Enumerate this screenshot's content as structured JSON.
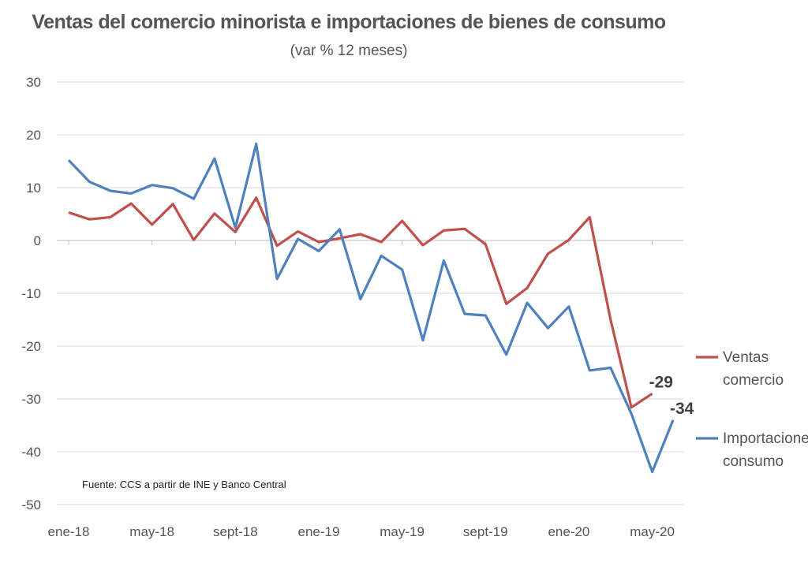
{
  "chart_data": {
    "type": "line",
    "title": "Ventas del comercio minorista e importaciones de bienes de consumo",
    "subtitle": "(var % 12 meses)",
    "xlabel": "",
    "ylabel": "",
    "ylim": [
      -50,
      30
    ],
    "yticks": [
      30,
      20,
      10,
      0,
      -10,
      -20,
      -30,
      -40,
      -50
    ],
    "x_tick_labels": [
      "ene-18",
      "may-18",
      "sept-18",
      "ene-19",
      "may-19",
      "sept-19",
      "ene-20",
      "may-20"
    ],
    "x_tick_indices": [
      0,
      4,
      8,
      12,
      16,
      20,
      24,
      28
    ],
    "x": [
      "ene-18",
      "feb-18",
      "mar-18",
      "abr-18",
      "may-18",
      "jun-18",
      "jul-18",
      "ago-18",
      "sept-18",
      "oct-18",
      "nov-18",
      "dic-18",
      "ene-19",
      "feb-19",
      "mar-19",
      "abr-19",
      "may-19",
      "jun-19",
      "jul-19",
      "ago-19",
      "sept-19",
      "oct-19",
      "nov-19",
      "dic-19",
      "ene-20",
      "feb-20",
      "mar-20",
      "abr-20",
      "may-20",
      "jun-20"
    ],
    "grid": "horizontal",
    "legend_position": "right",
    "series": [
      {
        "name": "Ventas comercio",
        "legend_lines": [
          "Ventas",
          "comercio"
        ],
        "color": "#c0504d",
        "values": [
          5.3,
          4.0,
          4.4,
          7.0,
          3.0,
          6.9,
          0.1,
          5.1,
          1.6,
          8.1,
          -1.0,
          1.7,
          -0.3,
          0.4,
          1.2,
          -0.3,
          3.7,
          -0.9,
          1.9,
          2.2,
          -0.7,
          -12.0,
          -9.0,
          -2.5,
          0.1,
          4.4,
          -15.0,
          -31.6,
          -29.0,
          null
        ],
        "end_label": "-29"
      },
      {
        "name": "Importaciones consumo",
        "legend_lines": [
          "Importaciones",
          "consumo"
        ],
        "color": "#4f81bd",
        "values": [
          15.2,
          11.1,
          9.4,
          8.9,
          10.5,
          9.9,
          7.9,
          15.5,
          2.4,
          18.3,
          -7.3,
          0.3,
          -2.0,
          2.1,
          -11.1,
          -2.9,
          -5.5,
          -18.9,
          -3.8,
          -13.9,
          -14.2,
          -21.6,
          -11.8,
          -16.6,
          -12.5,
          -24.6,
          -24.1,
          -32.8,
          -43.8,
          -34.0
        ],
        "end_label": "-34"
      }
    ],
    "source": "Fuente: CCS a partir de INE y Banco Central"
  }
}
